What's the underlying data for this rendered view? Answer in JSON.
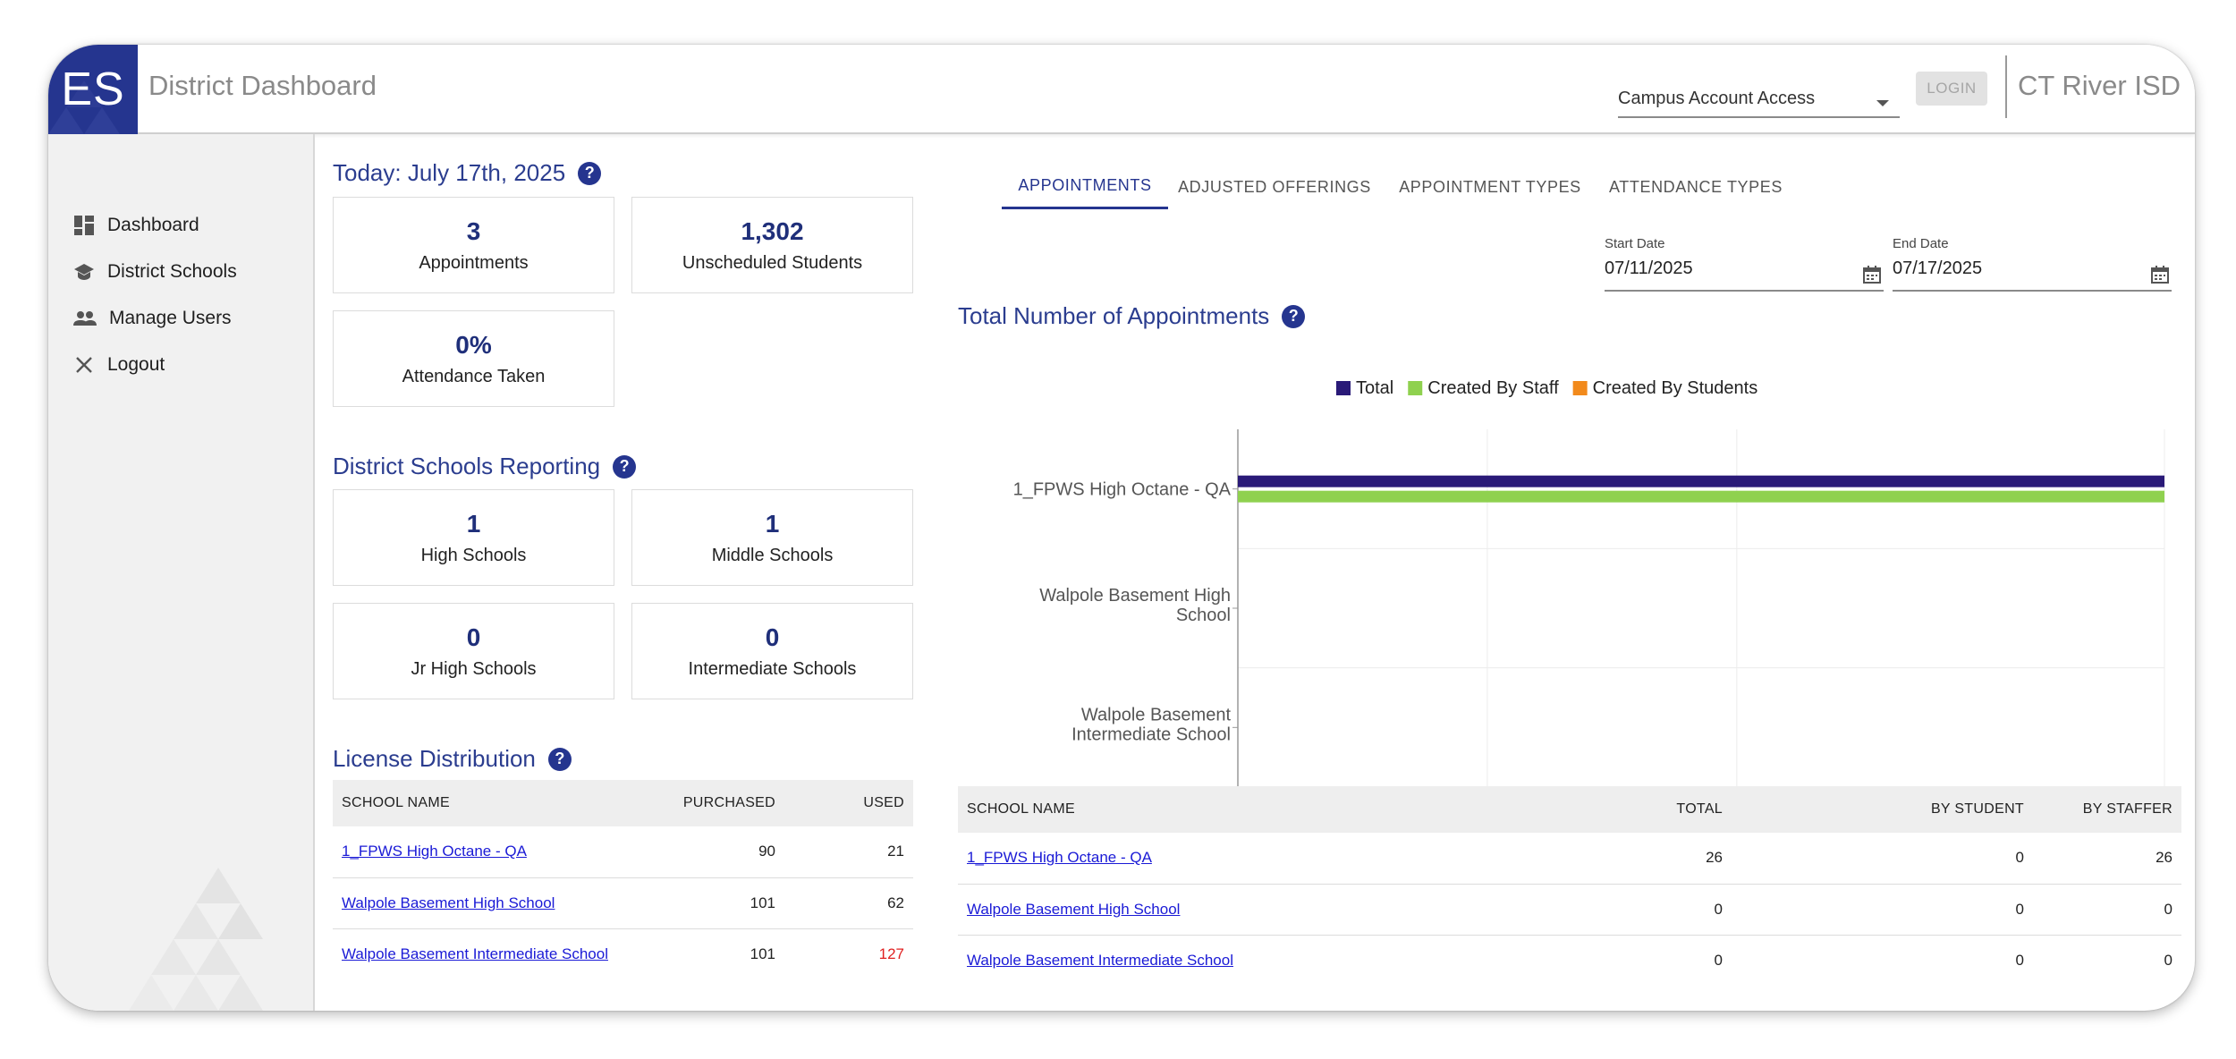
{
  "header": {
    "logo_text": "ES",
    "title": "District Dashboard",
    "campus_select": "Campus Account Access",
    "login_label": "LOGIN",
    "district_name": "CT River ISD"
  },
  "sidebar": {
    "items": [
      {
        "label": "Dashboard",
        "icon": "dashboard-icon"
      },
      {
        "label": "District Schools",
        "icon": "school-icon"
      },
      {
        "label": "Manage Users",
        "icon": "users-icon"
      },
      {
        "label": "Logout",
        "icon": "close-icon"
      }
    ]
  },
  "today": {
    "title": "Today: July 17th, 2025",
    "stats": [
      {
        "value": "3",
        "label": "Appointments"
      },
      {
        "value": "1,302",
        "label": "Unscheduled Students"
      },
      {
        "value": "0%",
        "label": "Attendance Taken"
      }
    ]
  },
  "reporting": {
    "title": "District Schools Reporting",
    "stats": [
      {
        "value": "1",
        "label": "High Schools"
      },
      {
        "value": "1",
        "label": "Middle Schools"
      },
      {
        "value": "0",
        "label": "Jr High Schools"
      },
      {
        "value": "0",
        "label": "Intermediate Schools"
      }
    ]
  },
  "license": {
    "title": "License Distribution",
    "columns": [
      "SCHOOL NAME",
      "PURCHASED",
      "USED"
    ],
    "rows": [
      {
        "name": "1_FPWS High Octane - QA",
        "purchased": "90",
        "used": "21"
      },
      {
        "name": "Walpole Basement High School",
        "purchased": "101",
        "used": "62"
      },
      {
        "name": "Walpole Basement Intermediate School",
        "purchased": "101",
        "used": "127"
      }
    ]
  },
  "tabs": [
    "APPOINTMENTS",
    "ADJUSTED OFFERINGS",
    "APPOINTMENT TYPES",
    "ATTENDANCE TYPES"
  ],
  "dates": {
    "start_label": "Start Date",
    "start_value": "07/11/2025",
    "end_label": "End Date",
    "end_value": "07/17/2025"
  },
  "appointments": {
    "title": "Total Number of Appointments",
    "columns": [
      "SCHOOL NAME",
      "TOTAL",
      "BY STUDENT",
      "BY STAFFER"
    ],
    "rows": [
      {
        "name": "1_FPWS High Octane - QA",
        "total": "26",
        "by_student": "0",
        "by_staffer": "26"
      },
      {
        "name": "Walpole Basement High School",
        "total": "0",
        "by_student": "0",
        "by_staffer": "0"
      },
      {
        "name": "Walpole Basement Intermediate School",
        "total": "0",
        "by_student": "0",
        "by_staffer": "0"
      }
    ]
  },
  "colors": {
    "brand": "#25358f",
    "total": "#2a1a78",
    "staff": "#8fd14f",
    "students": "#f28a1c"
  },
  "chart_data": {
    "type": "bar",
    "orientation": "horizontal",
    "categories": [
      "1_FPWS High Octane - QA",
      "Walpole Basement High School",
      "Walpole Basement Intermediate School"
    ],
    "series": [
      {
        "name": "Total",
        "values": [
          26,
          0,
          0
        ],
        "color": "#2a1a78"
      },
      {
        "name": "Created By Staff",
        "values": [
          26,
          0,
          0
        ],
        "color": "#8fd14f"
      },
      {
        "name": "Created By Students",
        "values": [
          0,
          0,
          0
        ],
        "color": "#f28a1c"
      }
    ],
    "xticks": [
      "0",
      "7",
      "14",
      "26"
    ],
    "xlim": [
      0,
      26
    ],
    "legend": "top",
    "grid": true
  }
}
